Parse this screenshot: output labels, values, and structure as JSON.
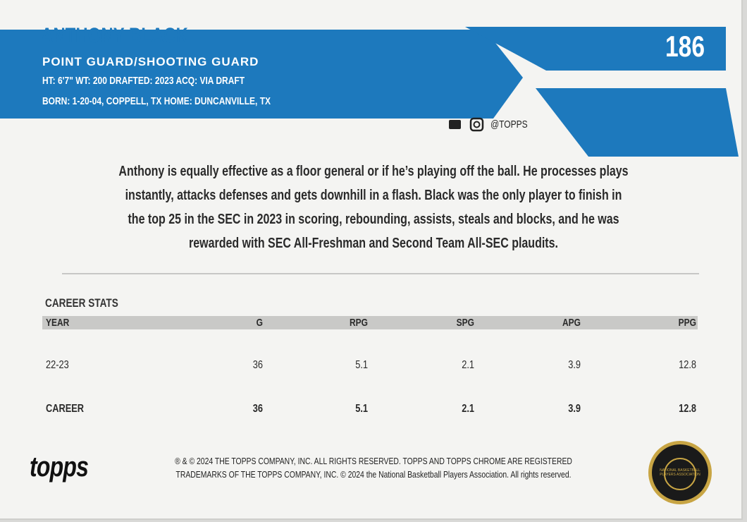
{
  "card": {
    "name": "ANTHONY BLACK",
    "position": "POINT GUARD/SHOOTING GUARD",
    "info": [
      "HT: 6'7\"  WT: 200  DRAFTED: 2023  ACQ: VIA DRAFT",
      "BORN: 1-20-04, COPPELL, TX  HOME: DUNCANVILLE, TX"
    ],
    "number": "186",
    "social": "@TOPPS",
    "bio": [
      "Anthony is equally effective as a floor general or if he’s playing off the ball. He processes plays",
      "instantly, attacks defenses and gets downhill in a flash. Black was the only player to finish in",
      "the top 25 in the SEC in 2023 in scoring, rebounding, assists, steals and blocks, and he was",
      "rewarded with SEC All-Freshman and Second Team All-SEC plaudits."
    ],
    "stats": {
      "title": "CAREER STATS",
      "header": [
        "YEAR",
        "G",
        "RPG",
        "SPG",
        "APG",
        "PPG"
      ],
      "rows": [
        [
          "22-23",
          "36",
          "5.1",
          "2.1",
          "3.9",
          "12.8"
        ],
        [
          "CAREER",
          "36",
          "5.1",
          "2.1",
          "3.9",
          "12.8"
        ]
      ]
    },
    "brand": "topps",
    "legal": [
      "® & © 2024 THE TOPPS COMPANY, INC. ALL RIGHTS RESERVED. TOPPS AND TOPPS CHROME ARE REGISTERED",
      "TRADEMARKS OF THE TOPPS COMPANY, INC. © 2024 the National Basketball Players Association. All rights reserved."
    ],
    "seal": "NATIONAL BASKETBALL PLAYERS ASSOCIATION"
  }
}
